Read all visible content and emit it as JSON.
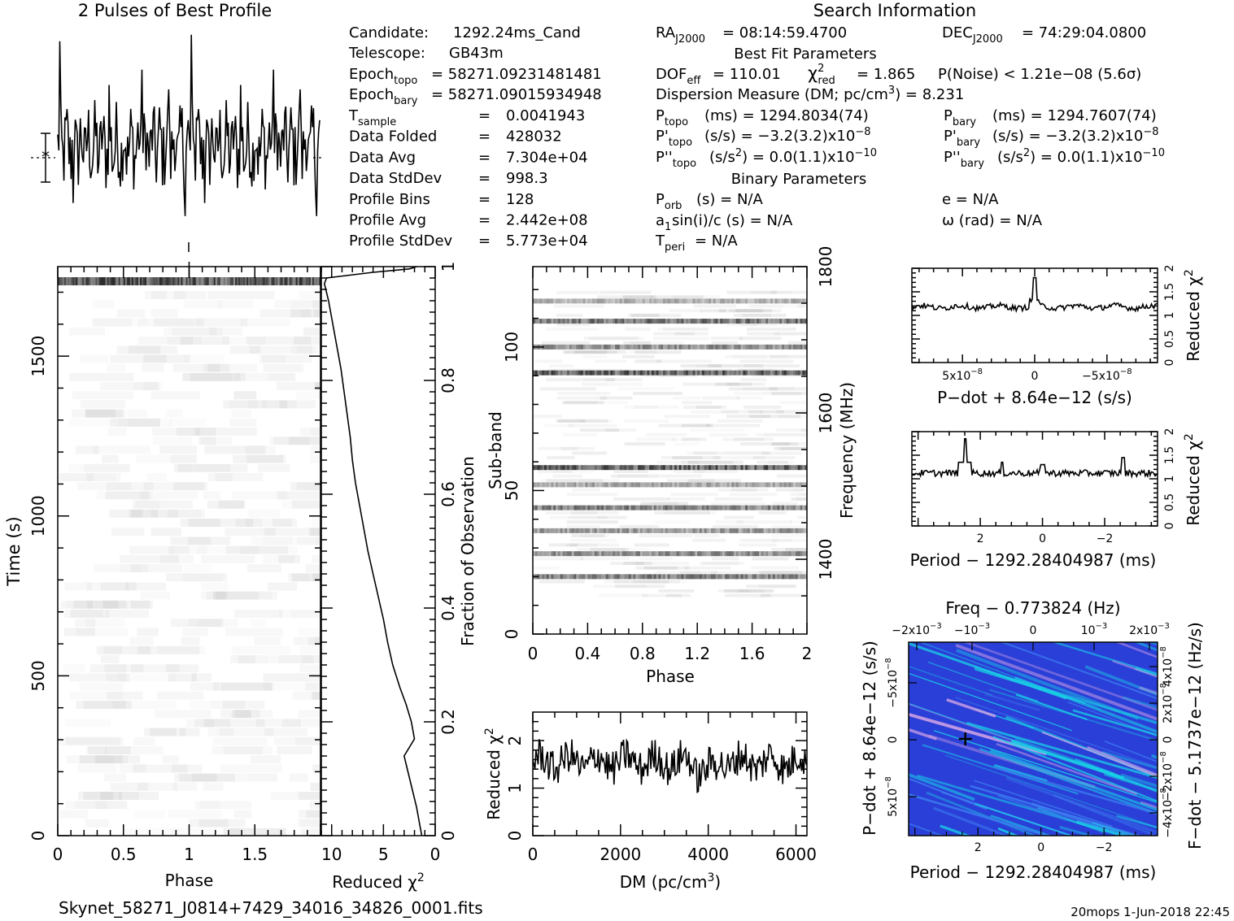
{
  "figure": {
    "profile_title": "2 Pulses of Best Profile",
    "search_title": "Search Information",
    "best_fit_title": "Best Fit Parameters",
    "binary_title": "Binary Parameters",
    "filename": "Skynet_58271_J0814+7429_34016_34826_0001.fits",
    "footer": "20mops   1-Jun-2018 22:45"
  },
  "info": {
    "candidate": {
      "label": "Candidate:",
      "value": "1292.24ms_Cand"
    },
    "telescope": {
      "label": "Telescope:",
      "value": "GB43m"
    },
    "epoch_topo": {
      "label": "Epoch",
      "sub": "topo",
      "value": "= 58271.09231481481"
    },
    "epoch_bary": {
      "label": "Epoch",
      "sub": "bary",
      "value": "= 58271.09015934948"
    },
    "rows": [
      {
        "label": "T",
        "sub": "sample",
        "value": "0.0041943"
      },
      {
        "label": "Data Folded",
        "value": "428032"
      },
      {
        "label": "Data Avg",
        "value": "7.304e+04"
      },
      {
        "label": "Data StdDev",
        "value": "998.3"
      },
      {
        "label": "Profile Bins",
        "value": "128"
      },
      {
        "label": "Profile Avg",
        "value": "2.442e+08"
      },
      {
        "label": "Profile StdDev",
        "value": "5.773e+04"
      }
    ],
    "eq": "=",
    "ra": {
      "label": "RA",
      "sub": "J2000",
      "value": "= 08:14:59.4700"
    },
    "dec": {
      "label": "DEC",
      "sub": "J2000",
      "value": "= 74:29:04.0800"
    },
    "dof": {
      "label": "DOF",
      "sub": "eff",
      "value": "= 110.01"
    },
    "chi": {
      "label": "χ",
      "sup": "2",
      "sub": "red",
      "value": "= 1.865"
    },
    "pnoise": "P(Noise) < 1.21e−08  (5.6σ)",
    "dm": {
      "text": "Dispersion Measure (DM; pc/cm",
      "sup": "3",
      "tail": ") = 8.231"
    },
    "ptopo": {
      "label": "P",
      "sub": "topo",
      "value": "(ms) =  1294.8034(74)"
    },
    "pbary": {
      "label": "P",
      "sub": "bary",
      "value": "(ms) =  1294.7607(74)"
    },
    "pdtopo": {
      "label": "P'",
      "sub": "topo",
      "value": "(s/s) = −3.2(3.2)x10",
      "exp": "−8"
    },
    "pdbary": {
      "label": "P'",
      "sub": "bary",
      "value": "(s/s) = −3.2(3.2)x10",
      "exp": "−8"
    },
    "pddtopo": {
      "label": "P''",
      "sub": "topo",
      "value": "(s/s",
      "sup": "2",
      "tail": ") = 0.0(1.1)x10",
      "exp": "−10"
    },
    "pddbary": {
      "label": "P''",
      "sub": "bary",
      "value": "(s/s",
      "sup": "2",
      "tail": ") = 0.0(1.1)x10",
      "exp": "−10"
    },
    "porb": {
      "label": "P",
      "sub": "orb",
      "value": "(s) = N/A"
    },
    "asini": {
      "label": "a",
      "sub": "1",
      "value": "sin(i)/c (s) = N/A"
    },
    "tperi": {
      "label": "T",
      "sub": "peri",
      "value": "= N/A"
    },
    "ecc": "e = N/A",
    "omega": "ω (rad) = N/A"
  },
  "chart_data": [
    {
      "id": "profile",
      "type": "line",
      "title": "2 Pulses of Best Profile",
      "x": [
        0,
        2
      ],
      "bins": 256,
      "ylim": [
        -3.8,
        5.2
      ]
    },
    {
      "id": "time-phase",
      "type": "heatmap",
      "xlabel": "Phase",
      "ylabel": "Time (s)",
      "xlim": [
        0,
        2
      ],
      "ylim": [
        0,
        1780
      ],
      "xticks": [
        "0",
        "0.5",
        "1",
        "1.5"
      ],
      "yticks": [
        "0",
        "500",
        "1000",
        "1500"
      ]
    },
    {
      "id": "time-chi2",
      "type": "line",
      "xlabel": "Reduced χ",
      "xlabel_sup": "2",
      "ylabel": "Fraction of Observation",
      "xlim": [
        11,
        0
      ],
      "ylim": [
        0,
        1
      ],
      "xticks": [
        "10",
        "5",
        "0"
      ],
      "yticks": [
        "0",
        "0.2",
        "0.4",
        "0.6",
        "0.8",
        "1"
      ],
      "points": [
        [
          1.3,
          0.0
        ],
        [
          1.5,
          0.02
        ],
        [
          1.8,
          0.05
        ],
        [
          2.2,
          0.08
        ],
        [
          2.6,
          0.11
        ],
        [
          3.0,
          0.14
        ],
        [
          2.0,
          0.17
        ],
        [
          2.3,
          0.2
        ],
        [
          2.8,
          0.23
        ],
        [
          3.4,
          0.26
        ],
        [
          4.1,
          0.3
        ],
        [
          4.6,
          0.34
        ],
        [
          5.0,
          0.38
        ],
        [
          5.5,
          0.42
        ],
        [
          6.0,
          0.46
        ],
        [
          6.5,
          0.5
        ],
        [
          6.9,
          0.54
        ],
        [
          7.3,
          0.58
        ],
        [
          7.7,
          0.62
        ],
        [
          8.0,
          0.66
        ],
        [
          8.2,
          0.7
        ],
        [
          8.5,
          0.74
        ],
        [
          8.8,
          0.78
        ],
        [
          9.1,
          0.82
        ],
        [
          9.5,
          0.86
        ],
        [
          9.9,
          0.9
        ],
        [
          10.3,
          0.94
        ],
        [
          10.7,
          0.97
        ],
        [
          10.5,
          0.98
        ],
        [
          6.0,
          0.99
        ],
        [
          2.5,
          0.996
        ],
        [
          1.8,
          1.0
        ]
      ]
    },
    {
      "id": "subband-phase",
      "type": "heatmap",
      "xlabel": "Phase",
      "ylabel": "Sub-band",
      "y2label": "Frequency (MHz)",
      "xlim": [
        0,
        2
      ],
      "ylim": [
        0,
        128
      ],
      "xticks": [
        "0",
        "0.4",
        "0.8",
        "1.2",
        "1.6",
        "2"
      ],
      "yticks": [
        "0",
        "50",
        "100"
      ],
      "y2ticks": [
        "1400",
        "1600",
        "1800"
      ],
      "bands": [
        [
          20,
          0.55
        ],
        [
          28,
          0.5
        ],
        [
          36,
          0.45
        ],
        [
          44,
          0.55
        ],
        [
          52,
          0.4
        ],
        [
          58,
          0.7
        ],
        [
          91,
          0.7
        ],
        [
          100,
          0.5
        ],
        [
          109,
          0.6
        ],
        [
          116,
          0.35
        ]
      ]
    },
    {
      "id": "dm-chi2",
      "type": "line",
      "xlabel": "DM (pc/cm",
      "xlabel_sup": "3",
      "xlabel_tail": ")",
      "ylabel": "Reduced χ",
      "ylabel_sup": "2",
      "xlim": [
        0,
        6250
      ],
      "ylim": [
        0,
        2.6
      ],
      "xticks": [
        "0",
        "2000",
        "4000",
        "6000"
      ],
      "yticks": [
        "0",
        "1",
        "2"
      ]
    },
    {
      "id": "pdot-chi2",
      "type": "line",
      "xlabel": "P−dot + 8.64e−12 (s/s)",
      "ylabel": "Reduced χ",
      "ylabel_sup": "2",
      "xlim": [
        8.5e-08,
        -8.5e-08
      ],
      "ylim": [
        0,
        2
      ],
      "xticks": [
        "5x10",
        "0",
        "−5x10"
      ],
      "xtick_exp": "−8",
      "yticks": [
        "0",
        "0.5",
        "1",
        "1.5",
        "2"
      ]
    },
    {
      "id": "period-chi2",
      "type": "line",
      "xlabel": "Period − 1292.28404987 (ms)",
      "ylabel": "Reduced χ",
      "ylabel_sup": "2",
      "xlim": [
        4.2,
        -3.7
      ],
      "ylim": [
        0,
        2
      ],
      "xticks": [
        "2",
        "0",
        "−2"
      ],
      "yticks": [
        "0",
        "0.5",
        "1",
        "1.5",
        "2"
      ]
    },
    {
      "id": "ppdot",
      "type": "heatmap",
      "title": "Freq − 0.773824 (Hz)",
      "xlabel": "Period − 1292.28404987 (ms)",
      "ylabel": "P−dot + 8.64e−12 (s/s)",
      "y2label": "F−dot − 5.1737e−12 (Hz/s)",
      "xticks": [
        "2",
        "0",
        "−2"
      ],
      "x2ticks": [
        {
          "m": "−2x10",
          "e": "−3"
        },
        {
          "m": "−10",
          "e": "−3"
        },
        {
          "m": "0",
          "e": ""
        },
        {
          "m": "10",
          "e": "−3"
        },
        {
          "m": "2x10",
          "e": "−3"
        }
      ],
      "yticks": [
        {
          "m": "−5x10",
          "e": "−8"
        },
        {
          "m": "0",
          "e": ""
        },
        {
          "m": "5x10",
          "e": "−8"
        }
      ],
      "y2ticks": [
        {
          "m": "4x10",
          "e": "−8"
        },
        {
          "m": "2x10",
          "e": "−8"
        },
        {
          "m": "0",
          "e": ""
        },
        {
          "m": "−2x10",
          "e": "−8"
        },
        {
          "m": "−4x10",
          "e": "−8"
        }
      ],
      "best": [
        2.4,
        0
      ]
    }
  ],
  "colors": {
    "ink": "#000000",
    "ppdot_bg": "#2a3fd8",
    "ppdot_hi": "#18d6e6",
    "ppdot_pink": "#d9a6e6"
  }
}
